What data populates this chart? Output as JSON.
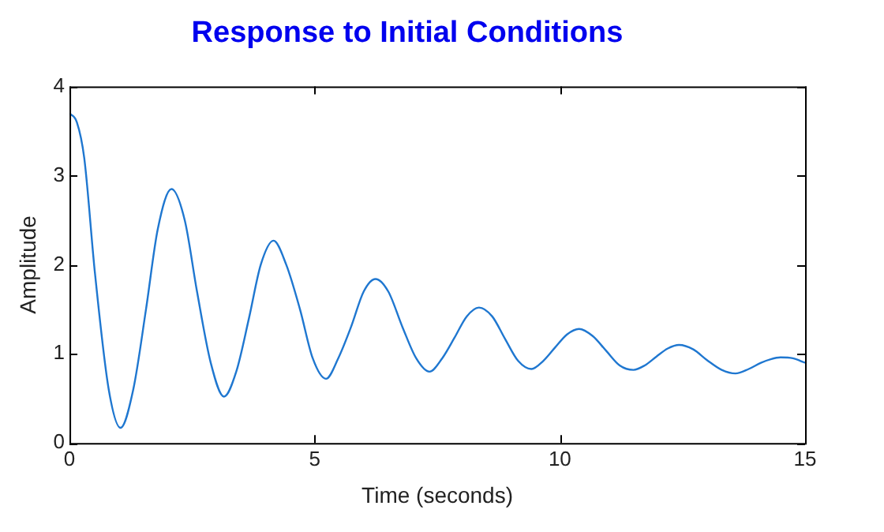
{
  "chart_data": {
    "type": "line",
    "title": "Response to Initial Conditions",
    "xlabel": "Time (seconds)",
    "ylabel": "Amplitude",
    "xlim": [
      0,
      15
    ],
    "xticks": [
      0,
      5,
      10,
      15
    ],
    "ylim": [
      0,
      4
    ],
    "yticks": [
      0,
      1,
      2,
      3,
      4
    ],
    "grid": false,
    "legend": false,
    "marker": "none",
    "line_style": "solid",
    "series": [
      {
        "color": "#1f77d0",
        "x": [
          0,
          0.15,
          0.3,
          0.52,
          0.8,
          1.04,
          1.3,
          1.56,
          1.8,
          2.08,
          2.35,
          2.6,
          2.88,
          3.15,
          3.4,
          3.66,
          3.9,
          4.16,
          4.42,
          4.7,
          4.96,
          5.23,
          5.48,
          5.74,
          6.0,
          6.24,
          6.5,
          6.79,
          7.07,
          7.34,
          7.6,
          7.85,
          8.1,
          8.35,
          8.62,
          8.88,
          9.15,
          9.42,
          9.66,
          9.9,
          10.15,
          10.39,
          10.67,
          10.95,
          11.22,
          11.5,
          11.73,
          11.97,
          12.2,
          12.43,
          12.72,
          13.0,
          13.3,
          13.58,
          13.85,
          14.1,
          14.3,
          14.5,
          14.75,
          15
        ],
        "values": [
          3.7,
          3.6,
          3.2,
          1.9,
          0.6,
          0.17,
          0.6,
          1.5,
          2.4,
          2.85,
          2.5,
          1.7,
          0.9,
          0.52,
          0.8,
          1.4,
          2.0,
          2.27,
          2.0,
          1.5,
          0.95,
          0.72,
          0.95,
          1.3,
          1.7,
          1.84,
          1.7,
          1.3,
          0.95,
          0.8,
          0.95,
          1.18,
          1.42,
          1.52,
          1.42,
          1.17,
          0.92,
          0.83,
          0.92,
          1.07,
          1.22,
          1.28,
          1.2,
          1.03,
          0.87,
          0.82,
          0.87,
          0.97,
          1.06,
          1.1,
          1.05,
          0.93,
          0.82,
          0.78,
          0.83,
          0.9,
          0.94,
          0.96,
          0.95,
          0.9
        ]
      }
    ]
  }
}
